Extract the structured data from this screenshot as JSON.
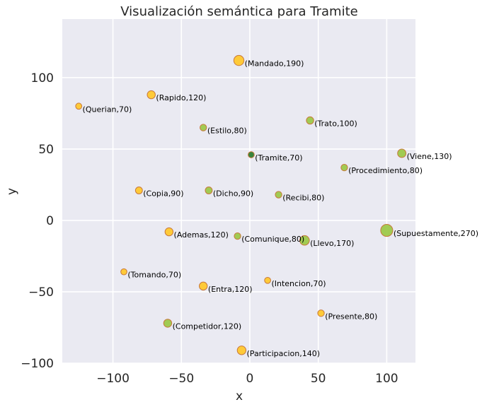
{
  "chart_data": {
    "type": "scatter",
    "title": "Visualización semántica para Tramite",
    "xlabel": "x",
    "ylabel": "y",
    "xlim": [
      -137,
      121
    ],
    "ylim": [
      -100,
      141
    ],
    "xticks": [
      -100,
      -50,
      0,
      50,
      100
    ],
    "yticks": [
      -100,
      -50,
      0,
      50,
      100
    ],
    "xtick_labels": [
      "−100",
      "−50",
      "0",
      "50",
      "100"
    ],
    "ytick_labels": [
      "−100",
      "−50",
      "0",
      "50",
      "100"
    ],
    "grid": true,
    "colors": {
      "background": "#eaeaf2",
      "grid": "#ffffff",
      "yellow": "#ffc82d",
      "green": "#9dc94a",
      "target": "#2e7d32",
      "edge": "#c8783c"
    },
    "points": [
      {
        "word": "Mandado",
        "score": 190,
        "x": -8,
        "y": 112,
        "color": "yellow",
        "label": "(Mandado,190)"
      },
      {
        "word": "Rapido",
        "score": 120,
        "x": -72,
        "y": 88,
        "color": "yellow",
        "label": "(Rapido,120)"
      },
      {
        "word": "Querian",
        "score": 70,
        "x": -125,
        "y": 80,
        "color": "yellow",
        "label": "(Querian,70)"
      },
      {
        "word": "Estilo",
        "score": 80,
        "x": -34,
        "y": 65,
        "color": "green",
        "label": "(Estilo,80)"
      },
      {
        "word": "Trato",
        "score": 100,
        "x": 44,
        "y": 70,
        "color": "green",
        "label": "(Trato,100)"
      },
      {
        "word": "Tramite",
        "score": 70,
        "x": 1,
        "y": 46,
        "color": "target",
        "label": "(Tramite,70)"
      },
      {
        "word": "Viene",
        "score": 130,
        "x": 111,
        "y": 47,
        "color": "green",
        "label": "(Viene,130)"
      },
      {
        "word": "Procedimiento",
        "score": 80,
        "x": 69,
        "y": 37,
        "color": "green",
        "label": "(Procedimiento,80)"
      },
      {
        "word": "Copia",
        "score": 90,
        "x": -81,
        "y": 21,
        "color": "yellow",
        "label": "(Copia,90)"
      },
      {
        "word": "Dicho",
        "score": 90,
        "x": -30,
        "y": 21,
        "color": "green",
        "label": "(Dicho,90)"
      },
      {
        "word": "Recibi",
        "score": 80,
        "x": 21,
        "y": 18,
        "color": "green",
        "label": "(Recibi,80)"
      },
      {
        "word": "Ademas",
        "score": 120,
        "x": -59,
        "y": -8,
        "color": "yellow",
        "label": "(Ademas,120)"
      },
      {
        "word": "Comunique",
        "score": 80,
        "x": -9,
        "y": -11,
        "color": "green",
        "label": "(Comunique,80)"
      },
      {
        "word": "Llevo",
        "score": 170,
        "x": 40,
        "y": -14,
        "color": "green",
        "label": "(Llevo,170)"
      },
      {
        "word": "Supuestamente",
        "score": 270,
        "x": 100,
        "y": -7,
        "color": "green",
        "label": "(Supuestamente,270)"
      },
      {
        "word": "Tomando",
        "score": 70,
        "x": -92,
        "y": -36,
        "color": "yellow",
        "label": "(Tomando,70)"
      },
      {
        "word": "Entra",
        "score": 120,
        "x": -34,
        "y": -46,
        "color": "yellow",
        "label": "(Entra,120)"
      },
      {
        "word": "Intencion",
        "score": 70,
        "x": 13,
        "y": -42,
        "color": "yellow",
        "label": "(Intencion,70)"
      },
      {
        "word": "Presente",
        "score": 80,
        "x": 52,
        "y": -65,
        "color": "yellow",
        "label": "(Presente,80)"
      },
      {
        "word": "Competidor",
        "score": 120,
        "x": -60,
        "y": -72,
        "color": "green",
        "label": "(Competidor,120)"
      },
      {
        "word": "Participacion",
        "score": 140,
        "x": -6,
        "y": -91,
        "color": "yellow",
        "label": "(Participacion,140)"
      }
    ]
  }
}
